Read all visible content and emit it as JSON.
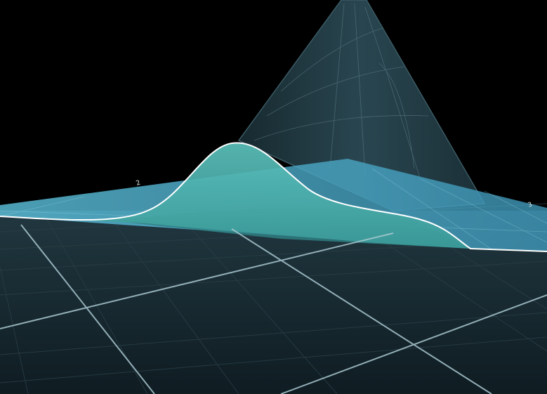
{
  "scene": {
    "type": "3d-surface-plot",
    "background": "#000000",
    "floor_color": "#16242b",
    "floor_grid_color": "#2b3f47",
    "major_grid_color": "#a9c7d0",
    "peak_surface_color": "#1e3942",
    "slice_plane_color": "#4cb1d0",
    "slice_curve_fill": "#47b3ad",
    "slice_under_fill": "#2f7f82",
    "curve_outline_color": "#ffffff"
  },
  "axis_labels": [
    {
      "name": "axis-tick-left",
      "text": "2"
    },
    {
      "name": "axis-tick-right",
      "text": "3"
    }
  ]
}
